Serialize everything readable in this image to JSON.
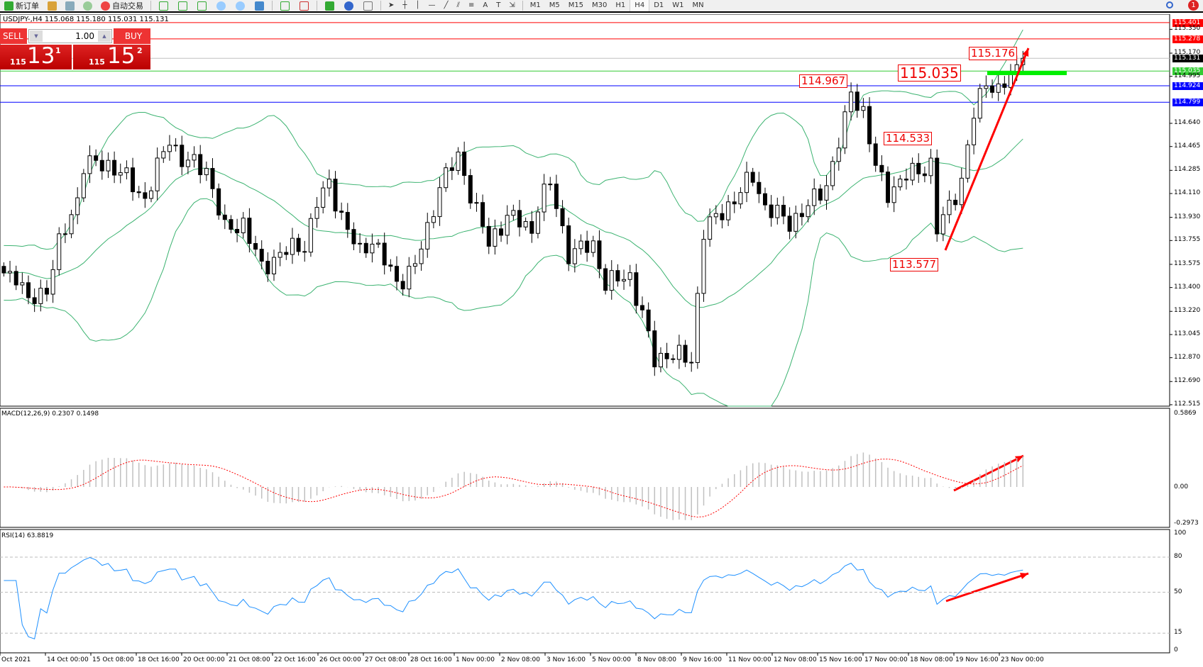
{
  "toolbar": {
    "new_order": "新订单",
    "auto_trading": "自动交易",
    "timeframes": [
      "M1",
      "M5",
      "M15",
      "M30",
      "H1",
      "H4",
      "D1",
      "W1",
      "MN"
    ],
    "active_timeframe": "H4",
    "notification_count": "1"
  },
  "chart_header": "USDJPY-,H4  115.068 115.180 115.031 115.131",
  "trade_panel": {
    "sell_label": "SELL",
    "buy_label": "BUY",
    "lot": "1.00",
    "sell_prefix": "115",
    "sell_big": "13",
    "sell_sup": "1",
    "buy_prefix": "115",
    "buy_big": "15",
    "buy_sup": "2"
  },
  "price_axis_ticks": [
    "115.350",
    "115.170",
    "114.995",
    "114.640",
    "114.465",
    "114.285",
    "114.110",
    "113.930",
    "113.755",
    "113.575",
    "113.400",
    "113.220",
    "113.045",
    "112.870",
    "112.690",
    "112.515"
  ],
  "price_lines": [
    {
      "price": "115.401",
      "color": "#ff0000"
    },
    {
      "price": "115.278",
      "color": "#ff0000"
    },
    {
      "price": "115.131",
      "color": "#000000",
      "line": "#c0c0c0"
    },
    {
      "price": "115.035",
      "color": "#33cc33"
    },
    {
      "price": "114.924",
      "color": "#0000ff"
    },
    {
      "price": "114.799",
      "color": "#0000ff"
    }
  ],
  "annotations": [
    "114.967",
    "115.035",
    "114.533",
    "113.577",
    "115.176"
  ],
  "time_labels": [
    "Oct 2021",
    "14 Oct 00:00",
    "15 Oct 08:00",
    "18 Oct 16:00",
    "20 Oct 00:00",
    "21 Oct 08:00",
    "22 Oct 16:00",
    "26 Oct 00:00",
    "27 Oct 08:00",
    "28 Oct 16:00",
    "1 Nov 00:00",
    "2 Nov 08:00",
    "3 Nov 16:00",
    "5 Nov 00:00",
    "8 Nov 08:00",
    "9 Nov 16:00",
    "11 Nov 00:00",
    "12 Nov 08:00",
    "15 Nov 16:00",
    "17 Nov 00:00",
    "18 Nov 08:00",
    "19 Nov 16:00",
    "23 Nov 00:00"
  ],
  "macd": {
    "title": "MACD(12,26,9) 0.2307 0.1498",
    "axis": [
      "0.5869",
      "0.00",
      "-0.2973"
    ]
  },
  "rsi": {
    "title": "RSI(14) 63.8819",
    "axis": [
      "100",
      "80",
      "50",
      "15",
      "0"
    ]
  },
  "chart_data": {
    "type": "candlestick",
    "symbol": "USDJPY-",
    "timeframe": "H4",
    "ylim": [
      112.515,
      115.401
    ],
    "bar_count": 167,
    "close_keypoints": [
      [
        0,
        113.51
      ],
      [
        2,
        113.5
      ],
      [
        4,
        113.28
      ],
      [
        7,
        113.4
      ],
      [
        9,
        113.72
      ],
      [
        12,
        114.07
      ],
      [
        13,
        114.33
      ],
      [
        17,
        114.33
      ],
      [
        19,
        114.27
      ],
      [
        23,
        114.07
      ],
      [
        27,
        114.53
      ],
      [
        29,
        114.36
      ],
      [
        33,
        114.3
      ],
      [
        36,
        113.83
      ],
      [
        39,
        113.89
      ],
      [
        42,
        113.54
      ],
      [
        45,
        113.66
      ],
      [
        49,
        113.72
      ],
      [
        51,
        114.04
      ],
      [
        53,
        114.18
      ],
      [
        56,
        113.83
      ],
      [
        58,
        113.66
      ],
      [
        60,
        113.77
      ],
      [
        64,
        113.43
      ],
      [
        67,
        113.57
      ],
      [
        69,
        113.83
      ],
      [
        71,
        114.18
      ],
      [
        74,
        114.38
      ],
      [
        76,
        114.12
      ],
      [
        79,
        113.72
      ],
      [
        82,
        113.95
      ],
      [
        86,
        113.83
      ],
      [
        87,
        114.04
      ],
      [
        89,
        114.18
      ],
      [
        92,
        113.66
      ],
      [
        96,
        113.72
      ],
      [
        98,
        113.43
      ],
      [
        102,
        113.49
      ],
      [
        104,
        113.19
      ],
      [
        106,
        112.85
      ],
      [
        108,
        112.9
      ],
      [
        112,
        112.85
      ],
      [
        114,
        113.83
      ],
      [
        116,
        113.92
      ],
      [
        119,
        114.07
      ],
      [
        122,
        114.24
      ],
      [
        124,
        114.01
      ],
      [
        128,
        113.89
      ],
      [
        131,
        114.01
      ],
      [
        134,
        114.18
      ],
      [
        137,
        114.65
      ],
      [
        138,
        114.88
      ],
      [
        140,
        114.73
      ],
      [
        142,
        114.3
      ],
      [
        144,
        114.12
      ],
      [
        147,
        114.24
      ],
      [
        151,
        114.33
      ],
      [
        152,
        113.83
      ],
      [
        153,
        113.92
      ],
      [
        156,
        114.21
      ],
      [
        158,
        114.7
      ],
      [
        160,
        114.97
      ],
      [
        162,
        114.88
      ],
      [
        164,
        114.99
      ],
      [
        166,
        115.131
      ]
    ],
    "indicators": {
      "bollinger": {
        "period": 20,
        "deviation": 2,
        "color": "#3cb371"
      },
      "macd": {
        "fast": 12,
        "slow": 26,
        "signal": 9,
        "ylim": [
          -0.2973,
          0.5869
        ],
        "hist_color": "#c0c0c0",
        "signal_color": "#ff0000"
      },
      "rsi": {
        "period": 14,
        "levels": [
          80,
          50,
          15
        ],
        "ylim": [
          0,
          100
        ],
        "color": "#1e90ff"
      }
    },
    "arrow_color": "#ff0000",
    "highlight_color": "#00ee00"
  }
}
